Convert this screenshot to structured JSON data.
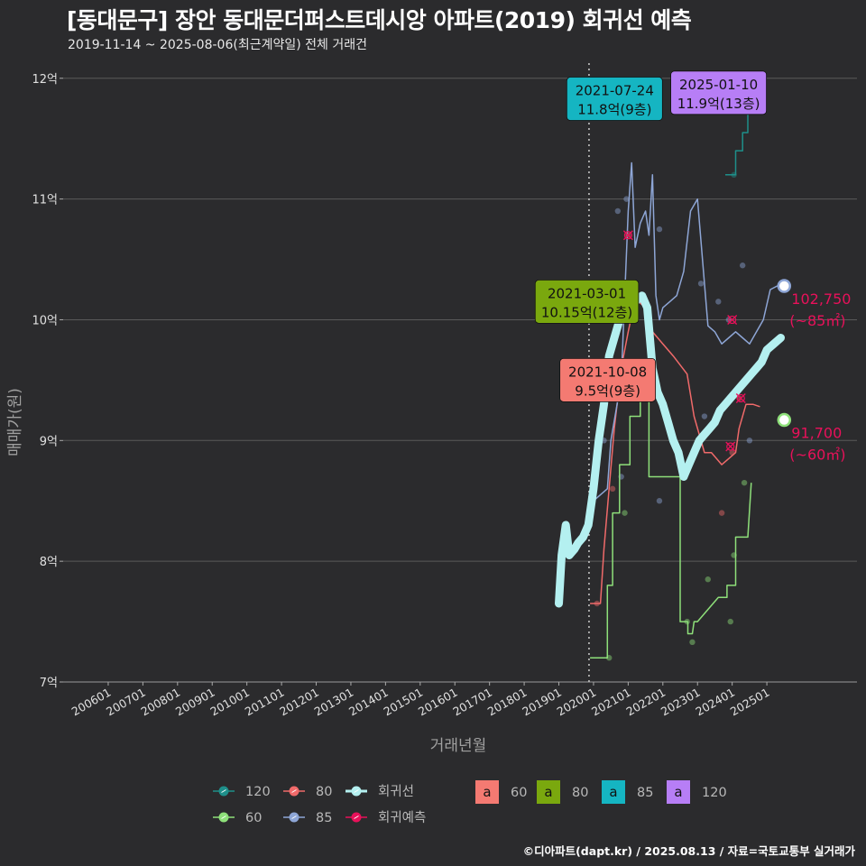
{
  "title": "[동대문구] 장안 동대문더퍼스트데시앙 아파트(2019) 회귀선 예측",
  "subtitle": "2019-11-14 ~ 2025-08-06(최근계약일) 전체 거래건",
  "footer": "©디아파트(dapt.kr) / 2025.08.13 / 자료=국토교통부 실거래가",
  "colors": {
    "background": "#2b2b2d",
    "grid": "#5a5a5a",
    "s120": "#1e8f8a",
    "s80": "#f06a6a",
    "s60": "#8ee07a",
    "s85": "#8ea6d6",
    "regression": "#b4f0f0",
    "forecast": "#e8115a"
  },
  "chart_data": {
    "type": "line",
    "xlabel": "거래년월",
    "ylabel": "매매가(원)",
    "ylim": [
      7,
      12.2
    ],
    "y_unit": "억",
    "y_ticks": [
      7,
      8,
      9,
      10,
      11,
      12
    ],
    "y_tick_labels": [
      "7억",
      "8억",
      "9억",
      "10억",
      "11억",
      "12억"
    ],
    "x_ticks": [
      2006,
      2007,
      2008,
      2009,
      2010,
      2011,
      2012,
      2013,
      2014,
      2015,
      2016,
      2017,
      2018,
      2019,
      2020,
      2021,
      2022,
      2023,
      2024,
      2025
    ],
    "x_tick_labels": [
      "200601",
      "200701",
      "200801",
      "200901",
      "201001",
      "201101",
      "201201",
      "201301",
      "201401",
      "201501",
      "201601",
      "201701",
      "201801",
      "201901",
      "202001",
      "202101",
      "202201",
      "202301",
      "202401",
      "202501"
    ],
    "xlim": [
      2004.7,
      2027.6
    ],
    "vline_x": 2019.87,
    "series": [
      {
        "name": "60",
        "color_key": "s60",
        "x": [
          2019.9,
          2020.4,
          2020.4,
          2020.55,
          2020.55,
          2020.75,
          2020.75,
          2021.05,
          2021.05,
          2021.35,
          2021.35,
          2021.6,
          2021.6,
          2021.9,
          2022.5,
          2022.5,
          2022.72,
          2022.72,
          2022.85,
          2022.9,
          2023.0,
          2023.0,
          2023.6,
          2023.85,
          2023.85,
          2024.1,
          2024.1,
          2024.45,
          2024.55,
          2024.55
        ],
        "y": [
          7.2,
          7.2,
          7.8,
          7.8,
          8.4,
          8.4,
          8.8,
          8.8,
          9.2,
          9.2,
          9.5,
          9.5,
          8.7,
          8.7,
          8.7,
          7.5,
          7.5,
          7.4,
          7.4,
          7.5,
          7.5,
          7.5,
          7.7,
          7.7,
          7.8,
          7.8,
          8.2,
          8.2,
          8.65,
          8.65
        ]
      },
      {
        "name": "80",
        "color_key": "s80",
        "x": [
          2019.9,
          2020.2,
          2020.3,
          2020.45,
          2020.6,
          2020.8,
          2021.0,
          2021.15,
          2021.3,
          2021.5,
          2021.7,
          2022.0,
          2022.3,
          2022.7,
          2022.9,
          2023.2,
          2023.4,
          2023.7,
          2023.9,
          2024.1,
          2024.2,
          2024.4,
          2024.6,
          2024.8
        ],
        "y": [
          7.65,
          7.65,
          8.1,
          8.6,
          9.1,
          9.6,
          9.9,
          10.1,
          10.15,
          10.1,
          9.9,
          9.8,
          9.7,
          9.55,
          9.2,
          8.9,
          8.9,
          8.8,
          8.85,
          8.9,
          9.1,
          9.3,
          9.3,
          9.28
        ]
      },
      {
        "name": "85",
        "color_key": "s85",
        "x": [
          2020.0,
          2020.4,
          2020.5,
          2020.8,
          2021.0,
          2021.1,
          2021.2,
          2021.35,
          2021.5,
          2021.6,
          2021.7,
          2021.8,
          2021.9,
          2022.0,
          2022.2,
          2022.4,
          2022.6,
          2022.8,
          2023.0,
          2023.3,
          2023.5,
          2023.7,
          2023.9,
          2024.1,
          2024.3,
          2024.5,
          2024.7,
          2024.9,
          2025.1,
          2025.3,
          2025.45
        ],
        "y": [
          8.5,
          8.6,
          9.0,
          9.5,
          10.9,
          11.3,
          10.6,
          10.8,
          10.9,
          10.7,
          11.2,
          10.2,
          10.0,
          10.1,
          10.15,
          10.2,
          10.4,
          10.9,
          11.0,
          9.95,
          9.9,
          9.8,
          9.85,
          9.9,
          9.85,
          9.8,
          9.9,
          10.0,
          10.25,
          10.28,
          10.28
        ]
      },
      {
        "name": "120",
        "color_key": "s120",
        "x": [
          2023.8,
          2024.1,
          2024.1,
          2024.3,
          2024.3,
          2024.45,
          2024.45,
          2024.6,
          2024.6,
          2024.9
        ],
        "y": [
          11.2,
          11.2,
          11.4,
          11.4,
          11.55,
          11.55,
          11.75,
          11.75,
          11.9,
          11.9
        ]
      },
      {
        "name": "회귀선",
        "color_key": "regression",
        "x": [
          2019.0,
          2019.08,
          2019.2,
          2019.3,
          2019.45,
          2019.55,
          2019.7,
          2019.85,
          2020.0,
          2020.15,
          2020.3,
          2020.45,
          2020.6,
          2020.75,
          2020.9,
          2021.05,
          2021.2,
          2021.4,
          2021.55,
          2021.7,
          2021.85,
          2022.0,
          2022.15,
          2022.3,
          2022.45,
          2022.6,
          2022.75,
          2022.9,
          2023.05,
          2023.2,
          2023.35,
          2023.5,
          2023.65,
          2023.8,
          2023.95,
          2024.1,
          2024.25,
          2024.4,
          2024.55,
          2024.7,
          2024.85,
          2025.0,
          2025.2,
          2025.4
        ],
        "y": [
          7.65,
          8.05,
          8.3,
          8.05,
          8.1,
          8.15,
          8.2,
          8.3,
          8.6,
          9.0,
          9.3,
          9.7,
          9.85,
          10.0,
          10.15,
          10.25,
          10.15,
          10.2,
          10.1,
          9.6,
          9.4,
          9.3,
          9.15,
          9.0,
          8.9,
          8.7,
          8.8,
          8.9,
          9.0,
          9.05,
          9.1,
          9.15,
          9.25,
          9.3,
          9.35,
          9.4,
          9.45,
          9.5,
          9.55,
          9.6,
          9.65,
          9.75,
          9.8,
          9.85
        ]
      }
    ],
    "scatter": [
      {
        "x": 2020.45,
        "y": 7.2,
        "series": "60"
      },
      {
        "x": 2020.9,
        "y": 8.4,
        "series": "60"
      },
      {
        "x": 2021.45,
        "y": 9.5,
        "series": "60"
      },
      {
        "x": 2022.7,
        "y": 7.5,
        "series": "60"
      },
      {
        "x": 2022.85,
        "y": 7.33,
        "series": "60"
      },
      {
        "x": 2023.3,
        "y": 7.85,
        "series": "60"
      },
      {
        "x": 2023.95,
        "y": 7.5,
        "series": "60"
      },
      {
        "x": 2024.35,
        "y": 8.65,
        "series": "60"
      },
      {
        "x": 2024.05,
        "y": 8.05,
        "series": "60"
      },
      {
        "x": 2020.1,
        "y": 7.65,
        "series": "80"
      },
      {
        "x": 2020.55,
        "y": 8.6,
        "series": "80"
      },
      {
        "x": 2020.85,
        "y": 10.15,
        "series": "80"
      },
      {
        "x": 2021.0,
        "y": 10.7,
        "series": "80"
      },
      {
        "x": 2023.7,
        "y": 8.4,
        "series": "80"
      },
      {
        "x": 2024.0,
        "y": 8.9,
        "series": "80"
      },
      {
        "x": 2024.2,
        "y": 9.35,
        "series": "80"
      },
      {
        "x": 2020.3,
        "y": 9.0,
        "series": "85"
      },
      {
        "x": 2020.7,
        "y": 10.9,
        "series": "85"
      },
      {
        "x": 2020.95,
        "y": 11.0,
        "series": "85"
      },
      {
        "x": 2021.25,
        "y": 11.8,
        "series": "85"
      },
      {
        "x": 2021.9,
        "y": 10.75,
        "series": "85"
      },
      {
        "x": 2021.9,
        "y": 8.5,
        "series": "85"
      },
      {
        "x": 2023.1,
        "y": 10.3,
        "series": "85"
      },
      {
        "x": 2023.6,
        "y": 10.15,
        "series": "85"
      },
      {
        "x": 2023.9,
        "y": 10.0,
        "series": "85"
      },
      {
        "x": 2024.3,
        "y": 10.45,
        "series": "85"
      },
      {
        "x": 2023.2,
        "y": 9.2,
        "series": "85"
      },
      {
        "x": 2024.5,
        "y": 9.0,
        "series": "85"
      },
      {
        "x": 2020.8,
        "y": 8.7,
        "series": "85"
      },
      {
        "x": 2024.05,
        "y": 11.2,
        "series": "120"
      },
      {
        "x": 2024.6,
        "y": 11.9,
        "series": "120"
      }
    ],
    "forecast_points": [
      {
        "x": 2024.0,
        "y": 10.0,
        "series": "85"
      },
      {
        "x": 2023.95,
        "y": 8.95,
        "series": "60"
      },
      {
        "x": 2024.25,
        "y": 9.35,
        "series": "80"
      },
      {
        "x": 2021.0,
        "y": 10.7,
        "series": "80"
      }
    ],
    "end_points": [
      {
        "x": 2025.5,
        "y": 10.28,
        "series": "85",
        "label_line1": "102,750",
        "label_line2": "(~85㎡)"
      },
      {
        "x": 2025.5,
        "y": 9.17,
        "series": "60",
        "label_line1": "91,700",
        "label_line2": "(~60㎡)"
      }
    ],
    "annotations": [
      {
        "x": 2020.4,
        "y": 11.83,
        "line1": "2021-07-24",
        "line2": "11.8억(9층)",
        "fill": "#15b5c2",
        "series": "85"
      },
      {
        "x": 2023.4,
        "y": 11.88,
        "line1": "2025-01-10",
        "line2": "11.9억(13층)",
        "fill": "#b77ef6",
        "series": "120"
      },
      {
        "x": 2019.6,
        "y": 10.15,
        "line1": "2021-03-01",
        "line2": "10.15억(12층)",
        "fill": "#7aa80e",
        "series": "80"
      },
      {
        "x": 2020.2,
        "y": 9.5,
        "line1": "2021-10-08",
        "line2": "9.5억(9층)",
        "fill": "#f47a72",
        "series": "60"
      }
    ],
    "legend_lines": [
      {
        "label": "120",
        "color_key": "s120"
      },
      {
        "label": "80",
        "color_key": "s80"
      },
      {
        "label": "회귀선",
        "color_key": "regression"
      },
      {
        "label": "60",
        "color_key": "s60"
      },
      {
        "label": "85",
        "color_key": "s85"
      },
      {
        "label": "회귀예측",
        "color_key": "forecast"
      }
    ],
    "legend_boxes": [
      {
        "glyph": "a",
        "label": "60",
        "fill": "#f47a72"
      },
      {
        "glyph": "a",
        "label": "80",
        "fill": "#7aa80e"
      },
      {
        "glyph": "a",
        "label": "85",
        "fill": "#15b5c2"
      },
      {
        "glyph": "a",
        "label": "120",
        "fill": "#b77ef6"
      }
    ]
  }
}
